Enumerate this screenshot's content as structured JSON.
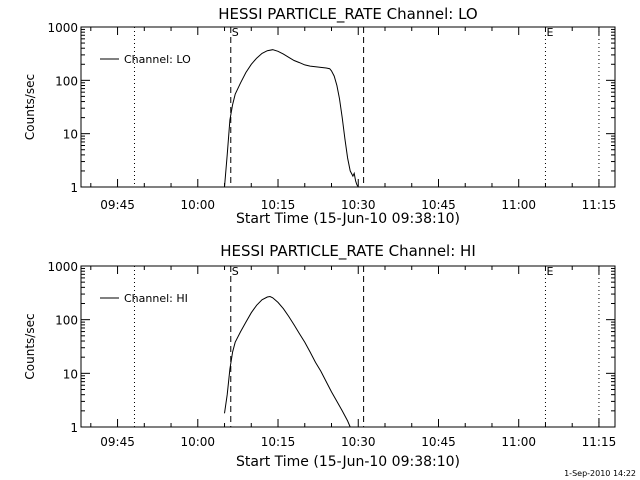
{
  "footer": {
    "timestamp": "1-Sep-2010 14:22"
  },
  "chart_data": [
    {
      "type": "line",
      "title": "HESSI PARTICLE_RATE Channel: LO",
      "xlabel": "Start Time (15-Jun-10 09:38:10)",
      "ylabel": "Counts/sec",
      "y_scale": "log",
      "ylim": [
        1,
        1000
      ],
      "y_ticks": [
        {
          "value": 1,
          "label": "1"
        },
        {
          "value": 10,
          "label": "10"
        },
        {
          "value": 100,
          "label": "100"
        },
        {
          "value": 1000,
          "label": "1000"
        }
      ],
      "xlim": [
        "09:38:10",
        "11:18:00"
      ],
      "x_ticks": [
        "09:45",
        "10:00",
        "10:15",
        "10:30",
        "10:45",
        "11:00",
        "11:15"
      ],
      "grid": false,
      "legend": {
        "placement": "top-left",
        "entries": [
          "Channel: LO"
        ]
      },
      "markers": [
        {
          "label": "",
          "time": "09:48:10",
          "style": "dotted"
        },
        {
          "label": "S",
          "time": "10:06:10",
          "style": "dashed"
        },
        {
          "label": "",
          "time": "10:31:00",
          "style": "dashed"
        },
        {
          "label": "E",
          "time": "11:05:00",
          "style": "dotted"
        },
        {
          "label": "",
          "time": "11:15:00",
          "style": "dotted"
        }
      ],
      "series": [
        {
          "name": "Channel: LO",
          "x": [
            "10:05:00",
            "10:05:30",
            "10:06:00",
            "10:06:30",
            "10:07:00",
            "10:08:00",
            "10:09:00",
            "10:10:00",
            "10:11:00",
            "10:12:00",
            "10:13:00",
            "10:14:00",
            "10:15:00",
            "10:16:00",
            "10:17:00",
            "10:18:00",
            "10:19:00",
            "10:20:00",
            "10:21:00",
            "10:22:00",
            "10:23:00",
            "10:24:00",
            "10:24:40",
            "10:25:00",
            "10:25:30",
            "10:26:00",
            "10:26:30",
            "10:27:00",
            "10:27:30",
            "10:28:00",
            "10:28:30",
            "10:29:00",
            "10:29:15",
            "10:29:30",
            "10:29:45",
            "10:30:00"
          ],
          "y": [
            1,
            4,
            18,
            35,
            55,
            90,
            140,
            200,
            260,
            320,
            360,
            375,
            350,
            310,
            270,
            235,
            215,
            195,
            185,
            180,
            175,
            170,
            165,
            150,
            120,
            80,
            45,
            20,
            8,
            3.5,
            2,
            1.6,
            1.8,
            1.3,
            1.1,
            1
          ]
        }
      ]
    },
    {
      "type": "line",
      "title": "HESSI PARTICLE_RATE Channel: HI",
      "xlabel": "Start Time (15-Jun-10 09:38:10)",
      "ylabel": "Counts/sec",
      "y_scale": "log",
      "ylim": [
        1,
        1000
      ],
      "y_ticks": [
        {
          "value": 1,
          "label": "1"
        },
        {
          "value": 10,
          "label": "10"
        },
        {
          "value": 100,
          "label": "100"
        },
        {
          "value": 1000,
          "label": "1000"
        }
      ],
      "xlim": [
        "09:38:10",
        "11:18:00"
      ],
      "x_ticks": [
        "09:45",
        "10:00",
        "10:15",
        "10:30",
        "10:45",
        "11:00",
        "11:15"
      ],
      "grid": false,
      "legend": {
        "placement": "top-left",
        "entries": [
          "Channel: HI"
        ]
      },
      "markers": [
        {
          "label": "",
          "time": "09:48:10",
          "style": "dotted"
        },
        {
          "label": "S",
          "time": "10:06:10",
          "style": "dashed"
        },
        {
          "label": "",
          "time": "10:31:00",
          "style": "dashed"
        },
        {
          "label": "E",
          "time": "11:05:00",
          "style": "dotted"
        },
        {
          "label": "",
          "time": "11:15:00",
          "style": "dotted"
        }
      ],
      "series": [
        {
          "name": "Channel: HI",
          "x": [
            "10:05:00",
            "10:05:30",
            "10:06:00",
            "10:06:30",
            "10:07:00",
            "10:08:00",
            "10:09:00",
            "10:10:00",
            "10:11:00",
            "10:12:00",
            "10:13:00",
            "10:13:30",
            "10:14:00",
            "10:15:00",
            "10:16:00",
            "10:17:00",
            "10:18:00",
            "10:19:00",
            "10:20:00",
            "10:21:00",
            "10:22:00",
            "10:23:00",
            "10:24:00",
            "10:25:00",
            "10:26:00",
            "10:27:00",
            "10:28:00",
            "10:28:30"
          ],
          "y": [
            1.8,
            4,
            12,
            25,
            38,
            60,
            90,
            135,
            185,
            235,
            265,
            270,
            255,
            210,
            160,
            115,
            80,
            55,
            38,
            25,
            16,
            11,
            7,
            4.5,
            3,
            2,
            1.3,
            1
          ]
        }
      ]
    }
  ]
}
